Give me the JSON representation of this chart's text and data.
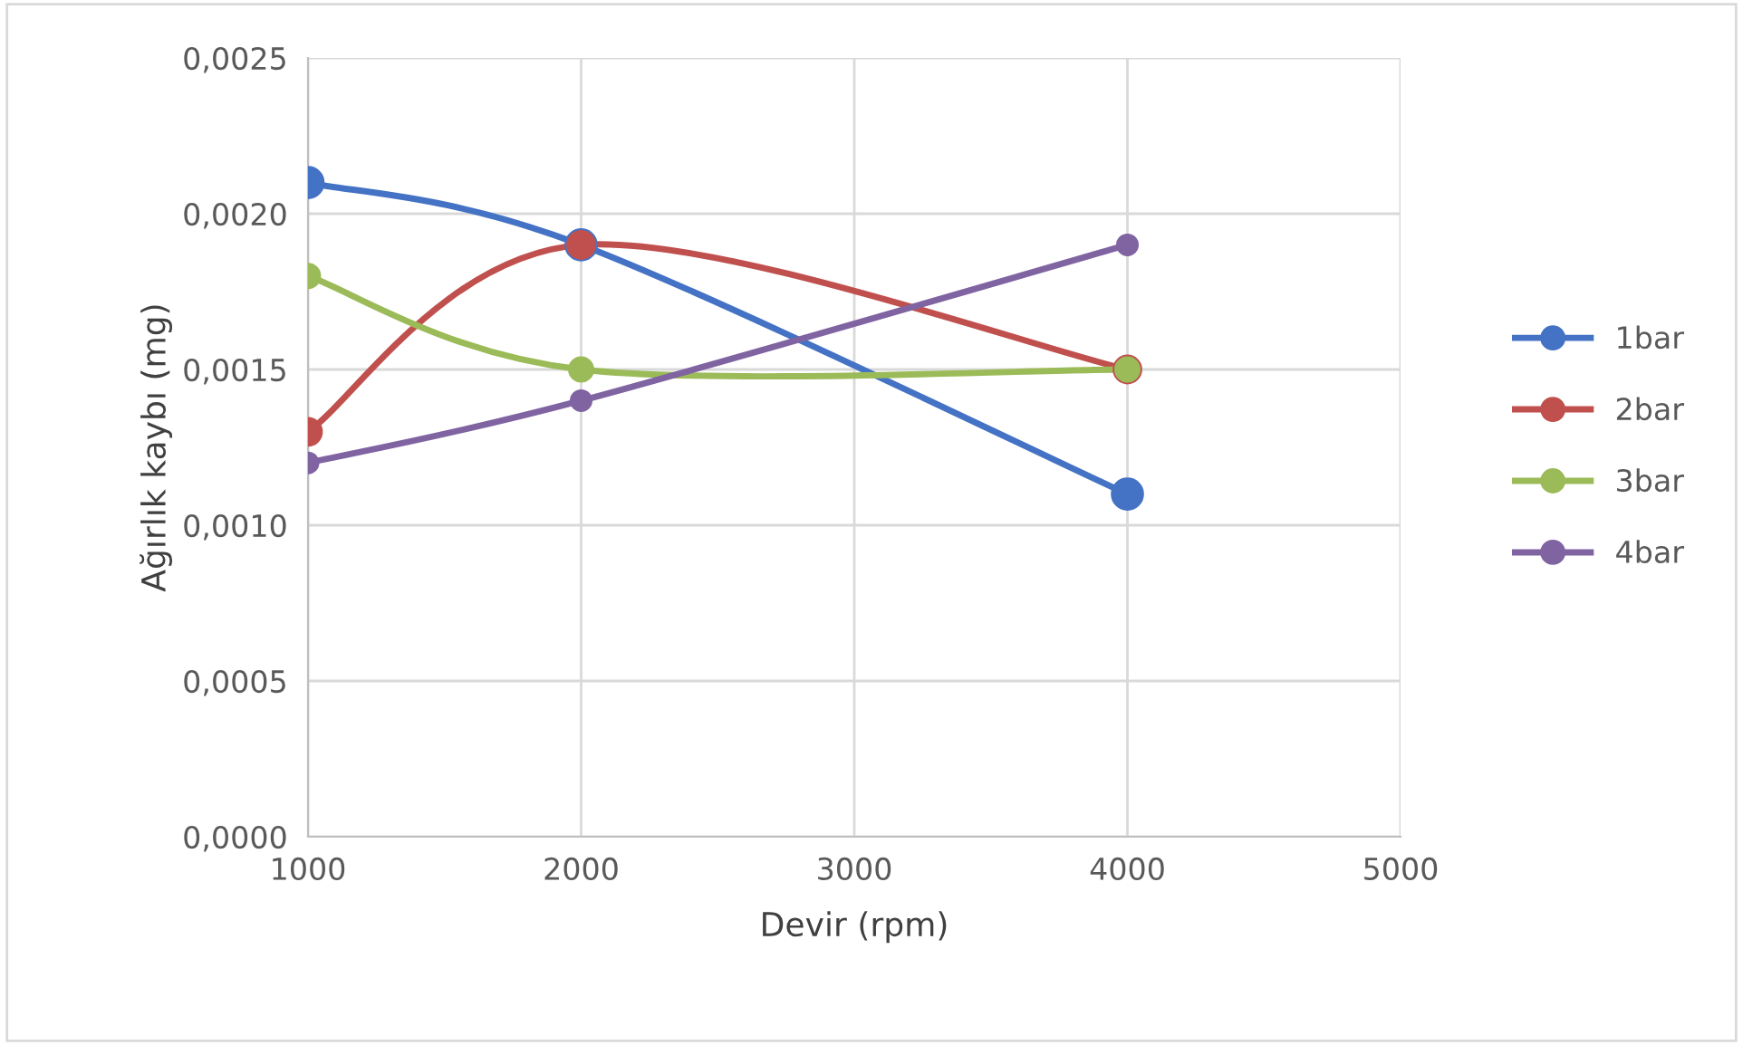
{
  "chart_data": {
    "type": "line",
    "xlabel": "Devir (rpm)",
    "ylabel": "Ağırlık kaybı (mg)",
    "x": [
      1000,
      2000,
      4000
    ],
    "series": [
      {
        "name": "1bar",
        "color": "#4472c4",
        "values": [
          0.0021,
          0.0019,
          0.0011
        ]
      },
      {
        "name": "2bar",
        "color": "#c0504d",
        "values": [
          0.0013,
          0.0019,
          0.0015
        ]
      },
      {
        "name": "3bar",
        "color": "#9bbb59",
        "values": [
          0.0018,
          0.0015,
          0.0015
        ]
      },
      {
        "name": "4bar",
        "color": "#8064a2",
        "values": [
          0.0012,
          0.0014,
          0.0019
        ]
      }
    ],
    "xlim": [
      1000,
      5000
    ],
    "xticks": [
      1000,
      2000,
      3000,
      4000,
      5000
    ],
    "ylim": [
      0,
      0.0025
    ],
    "yticks": [
      {
        "value": 0,
        "label": "0,0000"
      },
      {
        "value": 0.0005,
        "label": "0,0005"
      },
      {
        "value": 0.001,
        "label": "0,0010"
      },
      {
        "value": 0.0015,
        "label": "0,0015"
      },
      {
        "value": 0.002,
        "label": "0,0020"
      },
      {
        "value": 0.0025,
        "label": "0,0025"
      }
    ],
    "grid": true,
    "legend": "right",
    "marker": "circle",
    "line_style": "solid"
  }
}
